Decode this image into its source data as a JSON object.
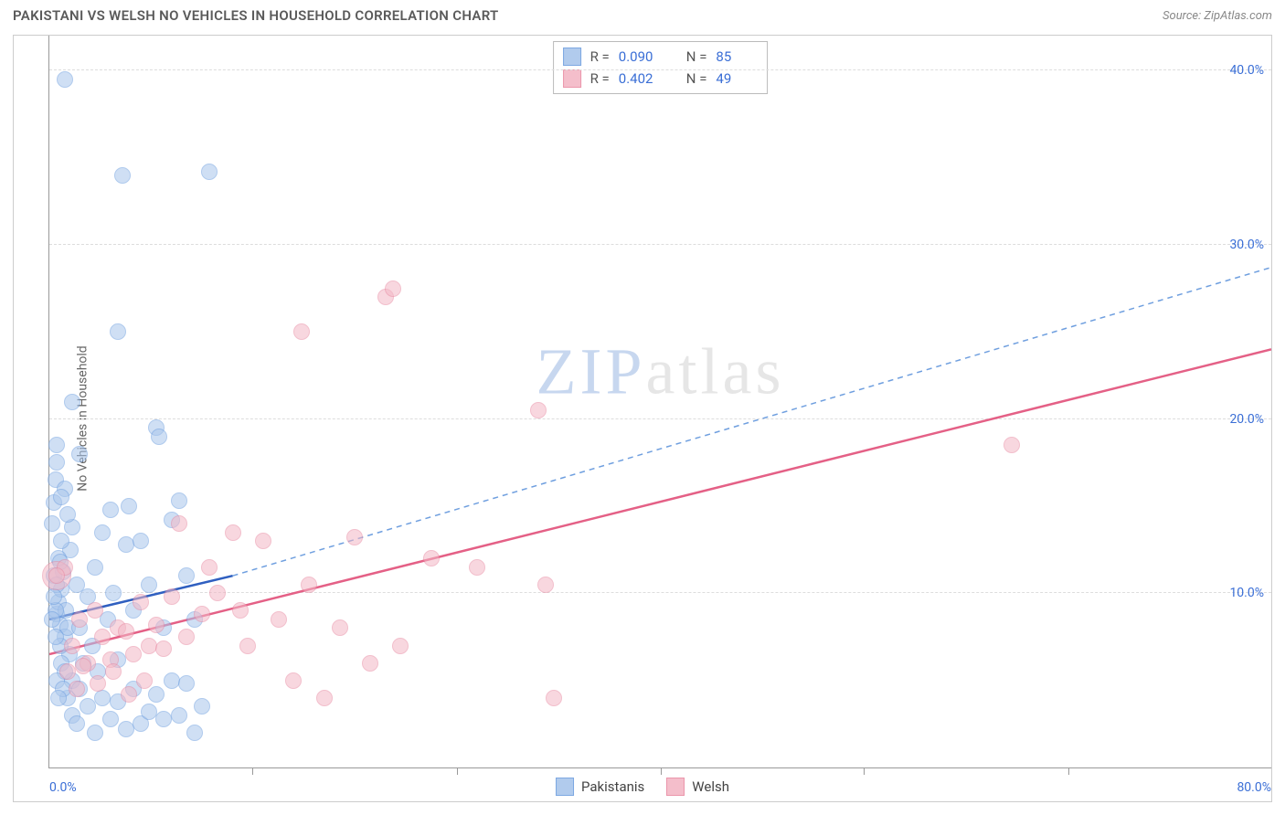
{
  "header": {
    "title": "PAKISTANI VS WELSH NO VEHICLES IN HOUSEHOLD CORRELATION CHART",
    "source": "Source: ZipAtlas.com"
  },
  "chart": {
    "ylabel": "No Vehicles in Household",
    "watermark_z": "ZIP",
    "watermark_rest": "atlas",
    "xlim": [
      0,
      80
    ],
    "ylim": [
      0,
      42
    ],
    "y_ticks": [
      10,
      20,
      30,
      40
    ],
    "y_tick_labels": [
      "10.0%",
      "20.0%",
      "30.0%",
      "40.0%"
    ],
    "x_ticks_major": [
      0,
      40,
      80
    ],
    "x_tick_labels": [
      "0.0%",
      "",
      "80.0%"
    ],
    "x_ticks_minor": [
      13.3,
      26.7,
      40,
      53.3,
      66.7
    ],
    "grid_color": "#dddddd",
    "axis_color": "#999999",
    "label_color": "#3b6fd6",
    "background_color": "#ffffff"
  },
  "series": [
    {
      "key": "pakistanis",
      "legend_label": "Pakistanis",
      "fill": "#a9c6ec",
      "stroke": "#6f9fdf",
      "fill_opacity": 0.55,
      "marker_r": 9,
      "stats": {
        "R": "0.090",
        "N": "85"
      },
      "trend": {
        "x1": 0,
        "y1": 8.5,
        "x2": 12,
        "y2": 11.0,
        "style": "solid",
        "color": "#2f5fc0"
      },
      "trend_ext": {
        "x1": 12,
        "y1": 11.0,
        "x2": 80,
        "y2": 28.7,
        "style": "dashed",
        "color": "#6f9fdf"
      },
      "points": [
        [
          0.5,
          8.8
        ],
        [
          0.6,
          9.5
        ],
        [
          0.7,
          8.2
        ],
        [
          0.8,
          10.2
        ],
        [
          0.2,
          14.0
        ],
        [
          0.3,
          15.2
        ],
        [
          0.4,
          16.5
        ],
        [
          1.0,
          7.5
        ],
        [
          1.1,
          9.0
        ],
        [
          1.2,
          8.0
        ],
        [
          1.3,
          6.5
        ],
        [
          1.4,
          12.5
        ],
        [
          1.5,
          5.0
        ],
        [
          0.9,
          11.2
        ],
        [
          1.5,
          13.8
        ],
        [
          1.8,
          10.5
        ],
        [
          2.0,
          8.0
        ],
        [
          2.2,
          6.0
        ],
        [
          2.5,
          9.8
        ],
        [
          2.8,
          7.0
        ],
        [
          3.0,
          11.5
        ],
        [
          3.2,
          5.5
        ],
        [
          3.5,
          13.5
        ],
        [
          3.8,
          8.5
        ],
        [
          4.0,
          14.8
        ],
        [
          4.2,
          10.0
        ],
        [
          4.5,
          6.2
        ],
        [
          5.0,
          12.8
        ],
        [
          5.2,
          15.0
        ],
        [
          5.5,
          9.0
        ],
        [
          6.0,
          13.0
        ],
        [
          6.5,
          10.5
        ],
        [
          7.0,
          19.5
        ],
        [
          7.2,
          19.0
        ],
        [
          7.5,
          8.0
        ],
        [
          8.0,
          14.2
        ],
        [
          8.5,
          15.3
        ],
        [
          9.0,
          11.0
        ],
        [
          9.5,
          8.5
        ],
        [
          4.5,
          25.0
        ],
        [
          1.0,
          39.5
        ],
        [
          4.8,
          34.0
        ],
        [
          10.5,
          34.2
        ],
        [
          1.2,
          4.0
        ],
        [
          1.5,
          3.0
        ],
        [
          1.8,
          2.5
        ],
        [
          2.0,
          4.5
        ],
        [
          2.5,
          3.5
        ],
        [
          3.0,
          2.0
        ],
        [
          3.5,
          4.0
        ],
        [
          4.0,
          2.8
        ],
        [
          4.5,
          3.8
        ],
        [
          5.0,
          2.2
        ],
        [
          5.5,
          4.5
        ],
        [
          6.0,
          2.5
        ],
        [
          6.5,
          3.2
        ],
        [
          7.0,
          4.2
        ],
        [
          7.5,
          2.8
        ],
        [
          8.0,
          5.0
        ],
        [
          8.5,
          3.0
        ],
        [
          9.0,
          4.8
        ],
        [
          9.5,
          2.0
        ],
        [
          10.0,
          3.5
        ],
        [
          2.0,
          18.0
        ],
        [
          1.5,
          21.0
        ],
        [
          0.5,
          18.5
        ],
        [
          0.8,
          6.0
        ],
        [
          1.0,
          5.5
        ],
        [
          0.5,
          5.0
        ],
        [
          0.7,
          7.0
        ],
        [
          0.9,
          4.5
        ],
        [
          0.4,
          9.0
        ],
        [
          0.6,
          12.0
        ],
        [
          1.2,
          14.5
        ],
        [
          0.8,
          13.0
        ],
        [
          0.3,
          11.0
        ],
        [
          0.5,
          10.5
        ],
        [
          1.0,
          16.0
        ],
        [
          0.4,
          7.5
        ],
        [
          0.6,
          4.0
        ],
        [
          0.2,
          8.5
        ],
        [
          0.8,
          15.5
        ],
        [
          0.5,
          17.5
        ],
        [
          0.3,
          9.8
        ],
        [
          0.7,
          11.8
        ]
      ]
    },
    {
      "key": "welsh",
      "legend_label": "Welsh",
      "fill": "#f3b8c6",
      "stroke": "#e98ba3",
      "fill_opacity": 0.55,
      "marker_r": 9,
      "stats": {
        "R": "0.402",
        "N": "49"
      },
      "trend": {
        "x1": 0,
        "y1": 6.5,
        "x2": 80,
        "y2": 24.0,
        "style": "solid",
        "color": "#e46086"
      },
      "points": [
        [
          1.0,
          11.5
        ],
        [
          1.5,
          7.0
        ],
        [
          2.0,
          8.5
        ],
        [
          2.5,
          6.0
        ],
        [
          3.0,
          9.0
        ],
        [
          3.5,
          7.5
        ],
        [
          4.0,
          6.2
        ],
        [
          4.5,
          8.0
        ],
        [
          5.0,
          7.8
        ],
        [
          5.5,
          6.5
        ],
        [
          6.0,
          9.5
        ],
        [
          6.5,
          7.0
        ],
        [
          7.0,
          8.2
        ],
        [
          7.5,
          6.8
        ],
        [
          8.0,
          9.8
        ],
        [
          8.5,
          14.0
        ],
        [
          9.0,
          7.5
        ],
        [
          10.0,
          8.8
        ],
        [
          10.5,
          11.5
        ],
        [
          11.0,
          10.0
        ],
        [
          12.0,
          13.5
        ],
        [
          12.5,
          9.0
        ],
        [
          13.0,
          7.0
        ],
        [
          14.0,
          13.0
        ],
        [
          15.0,
          8.5
        ],
        [
          16.0,
          5.0
        ],
        [
          17.0,
          10.5
        ],
        [
          18.0,
          4.0
        ],
        [
          19.0,
          8.0
        ],
        [
          20.0,
          13.2
        ],
        [
          21.0,
          6.0
        ],
        [
          22.0,
          27.0
        ],
        [
          22.5,
          27.5
        ],
        [
          23.0,
          7.0
        ],
        [
          16.5,
          25.0
        ],
        [
          25.0,
          12.0
        ],
        [
          28.0,
          11.5
        ],
        [
          32.0,
          20.5
        ],
        [
          32.5,
          10.5
        ],
        [
          33.0,
          4.0
        ],
        [
          63.0,
          18.5
        ],
        [
          0.5,
          11.0
        ],
        [
          1.2,
          5.5
        ],
        [
          1.8,
          4.5
        ],
        [
          2.2,
          5.8
        ],
        [
          3.2,
          4.8
        ],
        [
          4.2,
          5.5
        ],
        [
          5.2,
          4.2
        ],
        [
          6.2,
          5.0
        ]
      ],
      "big_point": {
        "xy": [
          0.5,
          11.0
        ],
        "r": 16
      }
    }
  ],
  "stats_box": {
    "r_label": "R =",
    "n_label": "N ="
  }
}
